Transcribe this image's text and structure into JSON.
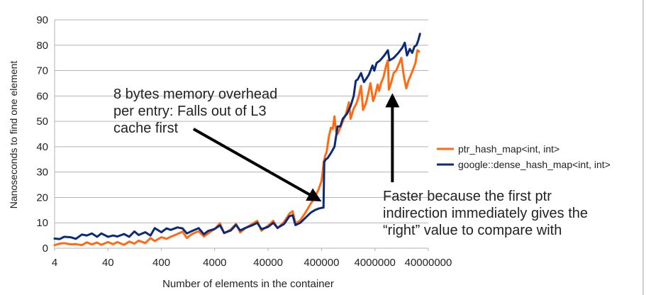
{
  "chart_data": {
    "type": "line",
    "xlabel": "Number of elements in the container",
    "ylabel": "Nanoseconds to find one element",
    "x_scale": "log",
    "xlim": [
      4,
      40000000
    ],
    "x_ticks": [
      "4",
      "40",
      "400",
      "4000",
      "40000",
      "400000",
      "4000000",
      "40000000"
    ],
    "ylim": [
      0,
      90
    ],
    "y_ticks": [
      "0",
      "10",
      "20",
      "30",
      "40",
      "50",
      "60",
      "70",
      "80",
      "90"
    ],
    "grid": "horizontal",
    "legend_position": "right",
    "series": [
      {
        "name": "ptr_hash_map<int, int>",
        "color": "#ff6a12",
        "points": [
          [
            4,
            1.2
          ],
          [
            5,
            1.8
          ],
          [
            6,
            2.0
          ],
          [
            8,
            1.5
          ],
          [
            10,
            1.6
          ],
          [
            13,
            1.2
          ],
          [
            16,
            2.3
          ],
          [
            20,
            1.5
          ],
          [
            25,
            2.2
          ],
          [
            30,
            1.3
          ],
          [
            40,
            2.4
          ],
          [
            50,
            1.6
          ],
          [
            60,
            2.4
          ],
          [
            80,
            1.3
          ],
          [
            100,
            2.6
          ],
          [
            125,
            1.8
          ],
          [
            150,
            3.0
          ],
          [
            200,
            2.0
          ],
          [
            250,
            4.0
          ],
          [
            300,
            2.8
          ],
          [
            400,
            4.3
          ],
          [
            500,
            3.7
          ],
          [
            600,
            4.5
          ],
          [
            800,
            5.6
          ],
          [
            1000,
            6.5
          ],
          [
            1200,
            4.0
          ],
          [
            1500,
            5.6
          ],
          [
            2000,
            6.7
          ],
          [
            2500,
            4.6
          ],
          [
            3000,
            5.8
          ],
          [
            4000,
            7.6
          ],
          [
            5000,
            9.8
          ],
          [
            6000,
            5.9
          ],
          [
            8000,
            7.4
          ],
          [
            10000,
            9.6
          ],
          [
            12000,
            6.2
          ],
          [
            15000,
            7.9
          ],
          [
            20000,
            9.5
          ],
          [
            25000,
            10.8
          ],
          [
            30000,
            6.9
          ],
          [
            40000,
            8.9
          ],
          [
            50000,
            10.8
          ],
          [
            60000,
            7.9
          ],
          [
            80000,
            10.4
          ],
          [
            100000,
            13.6
          ],
          [
            115000,
            14.6
          ],
          [
            130000,
            9.7
          ],
          [
            160000,
            11.0
          ],
          [
            200000,
            14.0
          ],
          [
            250000,
            17.5
          ],
          [
            300000,
            20.0
          ],
          [
            350000,
            23.0
          ],
          [
            400000,
            26.5
          ],
          [
            420000,
            30.0
          ],
          [
            440000,
            34.0
          ],
          [
            470000,
            36.5
          ],
          [
            500000,
            38.0
          ],
          [
            550000,
            44.0
          ],
          [
            600000,
            47.5
          ],
          [
            650000,
            47.0
          ],
          [
            700000,
            52.0
          ],
          [
            750000,
            46.0
          ],
          [
            800000,
            45.0
          ],
          [
            900000,
            47.5
          ],
          [
            1000000,
            50.0
          ],
          [
            1150000,
            53.0
          ],
          [
            1300000,
            57.5
          ],
          [
            1400000,
            51.0
          ],
          [
            1600000,
            55.0
          ],
          [
            1800000,
            57.0
          ],
          [
            2000000,
            60.0
          ],
          [
            2200000,
            64.0
          ],
          [
            2400000,
            54.5
          ],
          [
            2700000,
            57.0
          ],
          [
            3000000,
            61.0
          ],
          [
            3300000,
            65.0
          ],
          [
            3700000,
            58.0
          ],
          [
            4000000,
            60.0
          ],
          [
            4500000,
            64.5
          ],
          [
            4800000,
            62.0
          ],
          [
            5200000,
            65.0
          ],
          [
            5800000,
            67.5
          ],
          [
            6500000,
            72.0
          ],
          [
            7000000,
            74.0
          ],
          [
            7300000,
            62.5
          ],
          [
            8000000,
            65.0
          ],
          [
            9000000,
            69.0
          ],
          [
            10000000,
            70.0
          ],
          [
            11500000,
            73.0
          ],
          [
            12500000,
            75.0
          ],
          [
            14000000,
            67.5
          ],
          [
            15500000,
            63.0
          ],
          [
            17000000,
            66.0
          ],
          [
            20000000,
            69.5
          ],
          [
            23000000,
            73.0
          ],
          [
            25000000,
            78.0
          ],
          [
            27000000,
            77.5
          ]
        ]
      },
      {
        "name": "google::dense_hash_map<int, int>",
        "color": "#0d2a78",
        "points": [
          [
            4,
            3.8
          ],
          [
            5,
            3.6
          ],
          [
            6,
            4.5
          ],
          [
            8,
            4.3
          ],
          [
            10,
            3.7
          ],
          [
            13,
            5.4
          ],
          [
            16,
            5.0
          ],
          [
            20,
            5.8
          ],
          [
            25,
            4.5
          ],
          [
            30,
            5.8
          ],
          [
            40,
            4.5
          ],
          [
            50,
            5.0
          ],
          [
            60,
            4.6
          ],
          [
            80,
            5.6
          ],
          [
            100,
            4.5
          ],
          [
            125,
            6.6
          ],
          [
            150,
            5.2
          ],
          [
            200,
            6.3
          ],
          [
            250,
            5.0
          ],
          [
            300,
            7.9
          ],
          [
            400,
            6.3
          ],
          [
            500,
            7.8
          ],
          [
            600,
            7.2
          ],
          [
            800,
            8.2
          ],
          [
            1000,
            7.8
          ],
          [
            1200,
            5.8
          ],
          [
            1500,
            6.8
          ],
          [
            2000,
            7.9
          ],
          [
            2500,
            5.5
          ],
          [
            3000,
            6.8
          ],
          [
            4000,
            7.6
          ],
          [
            5000,
            9.0
          ],
          [
            6000,
            6.0
          ],
          [
            8000,
            7.0
          ],
          [
            10000,
            9.2
          ],
          [
            12000,
            7.0
          ],
          [
            15000,
            8.0
          ],
          [
            20000,
            9.0
          ],
          [
            25000,
            10.0
          ],
          [
            30000,
            7.5
          ],
          [
            40000,
            8.4
          ],
          [
            50000,
            10.0
          ],
          [
            60000,
            8.0
          ],
          [
            80000,
            9.6
          ],
          [
            100000,
            12.6
          ],
          [
            115000,
            13.0
          ],
          [
            130000,
            9.1
          ],
          [
            160000,
            10.0
          ],
          [
            200000,
            12.0
          ],
          [
            250000,
            14.0
          ],
          [
            300000,
            15.0
          ],
          [
            350000,
            15.6
          ],
          [
            420000,
            16.0
          ],
          [
            435000,
            16.0
          ],
          [
            450000,
            34.0
          ],
          [
            480000,
            35.0
          ],
          [
            520000,
            35.5
          ],
          [
            600000,
            37.5
          ],
          [
            700000,
            40.0
          ],
          [
            800000,
            48.0
          ],
          [
            900000,
            48.0
          ],
          [
            1000000,
            51.0
          ],
          [
            1200000,
            53.0
          ],
          [
            1400000,
            56.0
          ],
          [
            1600000,
            60.0
          ],
          [
            1750000,
            66.0
          ],
          [
            1900000,
            66.5
          ],
          [
            2200000,
            69.0
          ],
          [
            2500000,
            65.5
          ],
          [
            2800000,
            67.0
          ],
          [
            3100000,
            68.5
          ],
          [
            3600000,
            72.0
          ],
          [
            3900000,
            70.0
          ],
          [
            4300000,
            73.0
          ],
          [
            5000000,
            74.0
          ],
          [
            6000000,
            76.0
          ],
          [
            7000000,
            78.0
          ],
          [
            7500000,
            74.0
          ],
          [
            9000000,
            75.0
          ],
          [
            11000000,
            77.0
          ],
          [
            13000000,
            79.0
          ],
          [
            14500000,
            81.0
          ],
          [
            16000000,
            76.0
          ],
          [
            18000000,
            78.5
          ],
          [
            20000000,
            77.0
          ],
          [
            22000000,
            79.5
          ],
          [
            24000000,
            80.0
          ],
          [
            26000000,
            82.0
          ],
          [
            28000000,
            84.5
          ]
        ]
      }
    ],
    "annotations": [
      {
        "lines": [
          "8 bytes memory overhead",
          "per entry: Falls out of L3",
          "cache first"
        ],
        "arrow_from": [
          1600,
          47
        ],
        "arrow_to": [
          360000,
          19
        ]
      },
      {
        "lines": [
          "Faster because the first ptr",
          "indirection immediately gives the",
          "“right” value to compare with"
        ],
        "arrow_from": [
          8500000,
          26
        ],
        "arrow_to": [
          8500000,
          60
        ]
      }
    ]
  }
}
